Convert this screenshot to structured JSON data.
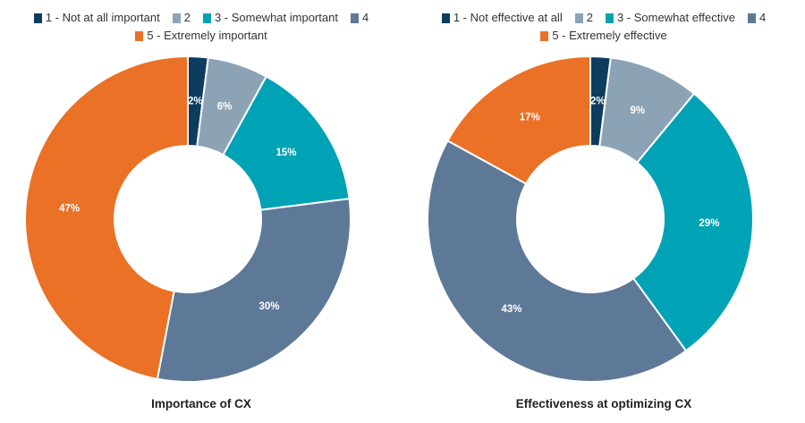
{
  "chart_data": [
    {
      "type": "pie",
      "title": "Importance of CX",
      "hole": true,
      "legend_rows": [
        [
          0,
          1,
          2,
          3
        ],
        [
          4
        ]
      ],
      "slices": [
        {
          "label": "1 - Not at all important",
          "value": 2,
          "text": "2%",
          "color": "#0d3d5e"
        },
        {
          "label": "2",
          "value": 6,
          "text": "6%",
          "color": "#8ca3b6"
        },
        {
          "label": "3 - Somewhat important",
          "value": 15,
          "text": "15%",
          "color": "#00a2b5"
        },
        {
          "label": "4",
          "value": 30,
          "text": "30%",
          "color": "#5e7898"
        },
        {
          "label": "5 - Extremely important",
          "value": 47,
          "text": "47%",
          "color": "#ea7126"
        }
      ]
    },
    {
      "type": "pie",
      "title": "Effectiveness at optimizing CX",
      "hole": true,
      "legend_rows": [
        [
          0,
          1,
          2,
          3
        ],
        [
          4
        ]
      ],
      "slices": [
        {
          "label": "1 - Not effective at all",
          "value": 2,
          "text": "2%",
          "color": "#0d3d5e"
        },
        {
          "label": "2",
          "value": 9,
          "text": "9%",
          "color": "#8ca3b6"
        },
        {
          "label": "3 - Somewhat effective",
          "value": 29,
          "text": "29%",
          "color": "#00a2b5"
        },
        {
          "label": "4",
          "value": 43,
          "text": "43%",
          "color": "#5e7898"
        },
        {
          "label": "5 - Extremely effective",
          "value": 17,
          "text": "17%",
          "color": "#ea7126"
        }
      ]
    }
  ]
}
